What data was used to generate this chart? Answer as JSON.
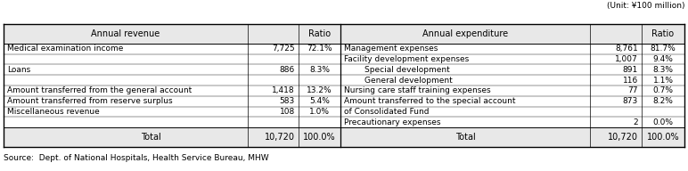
{
  "unit_text": "(Unit: ¥100 million)",
  "source_text": "Source:  Dept. of National Hospitals, Health Service Bureau, MHW",
  "left_header_label": "Annual revenue",
  "left_header_ratio": "Ratio",
  "right_header_label": "Annual expenditure",
  "right_header_ratio": "Ratio",
  "left_display": [
    [
      "Medical examination income",
      "7,725",
      "72.1%"
    ],
    [
      "",
      "",
      ""
    ],
    [
      "Loans",
      "886",
      "8.3%"
    ],
    [
      "",
      "",
      ""
    ],
    [
      "Amount transferred from the general account",
      "1,418",
      "13.2%"
    ],
    [
      "Amount transferred from reserve surplus",
      "583",
      "5.4%"
    ],
    [
      "Miscellaneous revenue",
      "108",
      "1.0%"
    ],
    [
      "",
      "",
      ""
    ]
  ],
  "right_display": [
    [
      "Management expenses",
      "8,761",
      "81.7%"
    ],
    [
      "Facility development expenses",
      "1,007",
      "9.4%"
    ],
    [
      "        Special development",
      "891",
      "8.3%"
    ],
    [
      "        General development",
      "116",
      "1.1%"
    ],
    [
      "Nursing care staff training expenses",
      "77",
      "0.7%"
    ],
    [
      "Amount transferred to the special account",
      "873",
      "8.2%"
    ],
    [
      "of Consolidated Fund",
      "",
      ""
    ],
    [
      "Precautionary expenses",
      "2",
      "0.0%"
    ]
  ],
  "left_total": [
    "Total",
    "10,720",
    "100.0%"
  ],
  "right_total": [
    "Total",
    "10,720",
    "100.0%"
  ],
  "bg_color": "#ffffff",
  "header_bg": "#e8e8e8",
  "total_bg": "#e8e8e8",
  "line_color": "#000000",
  "text_color": "#000000",
  "font_size": 6.5,
  "header_font_size": 7.0
}
